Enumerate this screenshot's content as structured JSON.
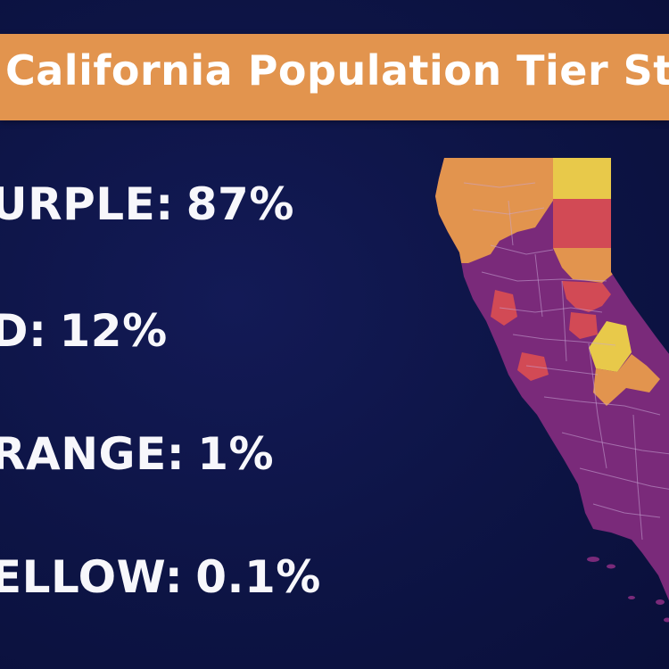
{
  "title": "California Population Tier Status",
  "tiers": [
    {
      "label": "URPLE",
      "value": "87%",
      "color": "#7a2a7a"
    },
    {
      "label": "D",
      "value": "12%",
      "color": "#d24a55"
    },
    {
      "label": "RANGE",
      "value": "1%",
      "color": "#e2944e"
    },
    {
      "label": "ELLOW",
      "value": "0.1%",
      "color": "#e8c94a"
    }
  ],
  "colors": {
    "background": "#0d1445",
    "title_bar": "#e2944e",
    "map_purple": "#7a2a7a",
    "map_red": "#d24a55",
    "map_orange": "#e2944e",
    "map_yellow": "#e8c94a"
  }
}
